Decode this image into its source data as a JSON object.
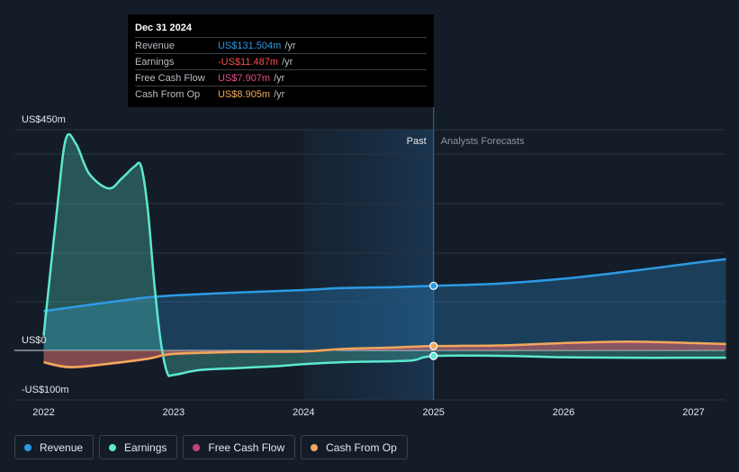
{
  "colors": {
    "revenue": "#2d9be4",
    "earnings": "#5ce8cf",
    "free_cash_flow": "#c24576",
    "cash_from_op": "#f0a95a",
    "background": "#141c27"
  },
  "tooltip": {
    "date": "Dec 31 2024",
    "rows": [
      {
        "label": "Revenue",
        "value": "US$131.504m",
        "unit": "/yr",
        "color": "#2d9be4"
      },
      {
        "label": "Earnings",
        "value": "-US$11.487m",
        "unit": "/yr",
        "color": "#ff4d4d"
      },
      {
        "label": "Free Cash Flow",
        "value": "US$7.907m",
        "unit": "/yr",
        "color": "#e0508c"
      },
      {
        "label": "Cash From Op",
        "value": "US$8.905m",
        "unit": "/yr",
        "color": "#f0a95a"
      }
    ]
  },
  "legend": [
    {
      "label": "Revenue",
      "color": "#2d9be4"
    },
    {
      "label": "Earnings",
      "color": "#5ce8cf"
    },
    {
      "label": "Free Cash Flow",
      "color": "#c24576"
    },
    {
      "label": "Cash From Op",
      "color": "#f0a95a"
    }
  ],
  "chart_data": {
    "type": "area",
    "y_labels": [
      "US$450m",
      "US$0",
      "-US$100m"
    ],
    "ylim": [
      -100,
      450
    ],
    "x_ticks": [
      "2022",
      "2023",
      "2024",
      "2025",
      "2026",
      "2027"
    ],
    "x_tick_values": [
      2022,
      2023,
      2024,
      2025,
      2026,
      2027
    ],
    "xlim": [
      2021.77,
      2027.25
    ],
    "past_label": "Past",
    "forecast_label": "Analysts Forecasts",
    "past_shade_start": 2024.0,
    "divider_x": 2025.0,
    "grid": true,
    "series": [
      {
        "name": "Revenue",
        "x": [
          2022.0,
          2022.5,
          2022.8,
          2023.0,
          2023.5,
          2024.0,
          2024.3,
          2024.7,
          2025.0,
          2025.5,
          2026.0,
          2026.5,
          2027.0,
          2027.25
        ],
        "values": [
          80,
          98,
          108,
          112,
          118,
          123,
          127,
          129,
          131.5,
          136,
          146,
          161,
          178,
          186
        ]
      },
      {
        "name": "Earnings",
        "x": [
          2022.0,
          2022.1,
          2022.17,
          2022.25,
          2022.35,
          2022.5,
          2022.6,
          2022.7,
          2022.75,
          2022.8,
          2022.85,
          2022.9,
          2022.95,
          2023.0,
          2023.2,
          2023.5,
          2023.8,
          2024.0,
          2024.3,
          2024.7,
          2024.85,
          2025.0,
          2025.5,
          2026.0,
          2026.5,
          2027.0,
          2027.25
        ],
        "values": [
          30,
          280,
          430,
          420,
          360,
          330,
          350,
          375,
          375,
          290,
          140,
          20,
          -45,
          -50,
          -40,
          -36,
          -32,
          -28,
          -24,
          -22,
          -20,
          -11.5,
          -11,
          -14,
          -15,
          -15,
          -15
        ]
      },
      {
        "name": "Free Cash Flow",
        "x": [
          2022.0,
          2022.2,
          2022.5,
          2022.8,
          2023.0,
          2023.5,
          2024.0,
          2024.3,
          2024.7,
          2025.0,
          2025.5,
          2026.0,
          2026.5,
          2027.0,
          2027.25
        ],
        "values": [
          -25,
          -35,
          -28,
          -18,
          -8,
          -4,
          -3,
          2,
          5,
          7.9,
          9,
          14,
          16,
          14,
          12
        ]
      },
      {
        "name": "Cash From Op",
        "x": [
          2022.0,
          2022.2,
          2022.5,
          2022.8,
          2023.0,
          2023.5,
          2024.0,
          2024.3,
          2024.7,
          2025.0,
          2025.5,
          2026.0,
          2026.5,
          2027.0,
          2027.25
        ],
        "values": [
          -24,
          -34,
          -27,
          -17,
          -7,
          -3,
          -2,
          3,
          6,
          8.9,
          10,
          15,
          18,
          15,
          13
        ]
      }
    ]
  }
}
